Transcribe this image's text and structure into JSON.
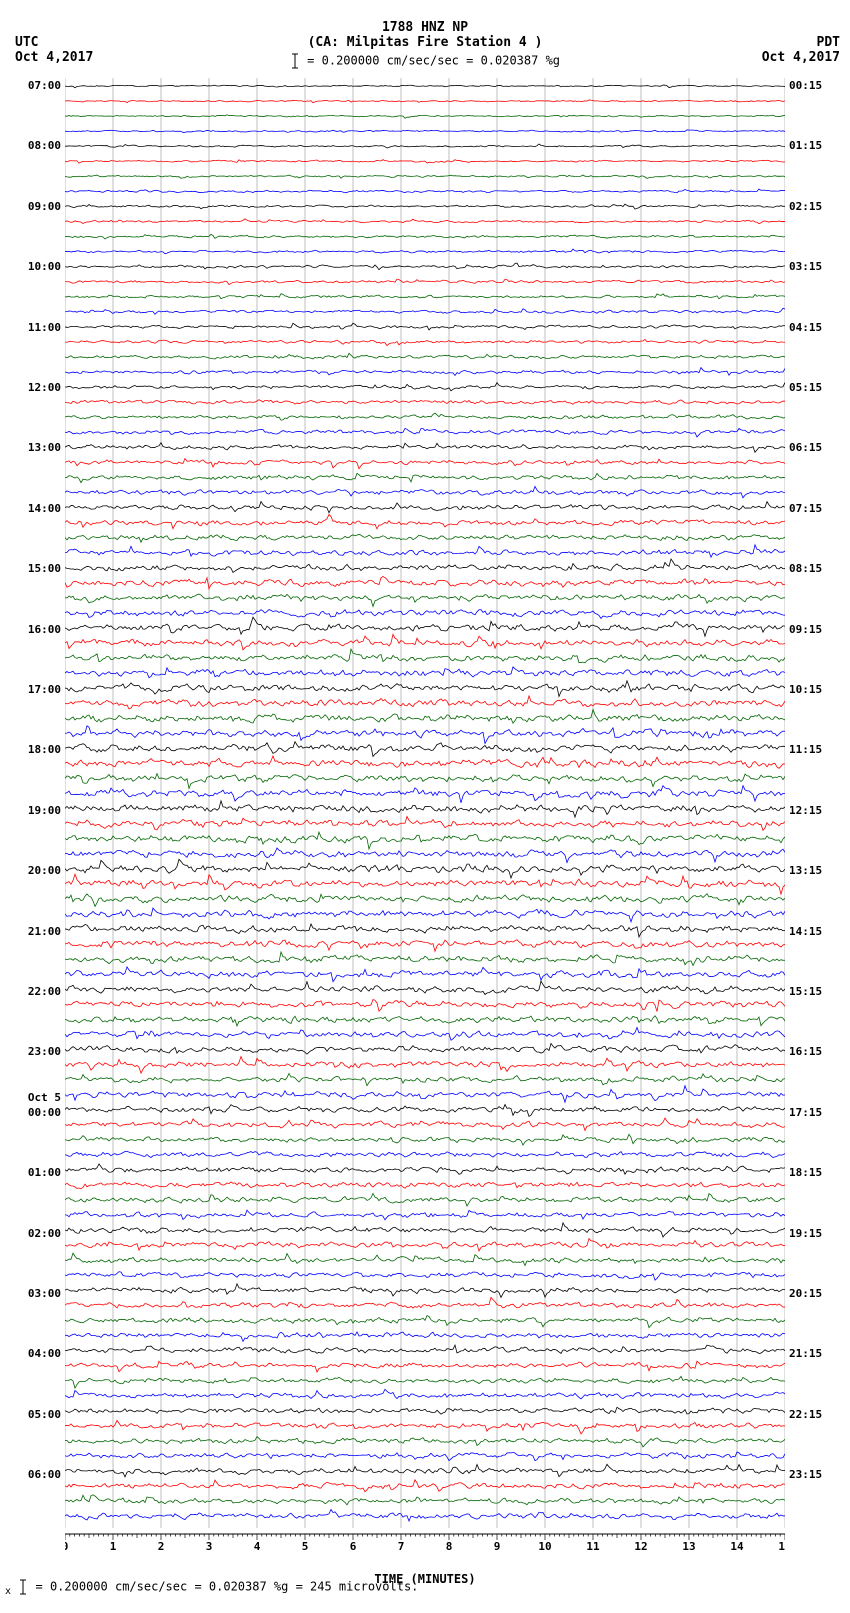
{
  "header": {
    "station_code": "1788 HNZ NP",
    "station_name": "(CA: Milpitas Fire Station 4 )",
    "scale_text": "= 0.200000 cm/sec/sec = 0.020387 %g",
    "left_tz": "UTC",
    "left_date": "Oct 4,2017",
    "right_tz": "PDT",
    "right_date": "Oct 4,2017"
  },
  "plot": {
    "colors": [
      "#000000",
      "#ff0000",
      "#006600",
      "#0000ff"
    ],
    "background": "#ffffff",
    "grid_color": "#808080",
    "n_rows": 96,
    "row_height": 15.1,
    "utc_labels": [
      {
        "row": 0,
        "text": "07:00"
      },
      {
        "row": 4,
        "text": "08:00"
      },
      {
        "row": 8,
        "text": "09:00"
      },
      {
        "row": 12,
        "text": "10:00"
      },
      {
        "row": 16,
        "text": "11:00"
      },
      {
        "row": 20,
        "text": "12:00"
      },
      {
        "row": 24,
        "text": "13:00"
      },
      {
        "row": 28,
        "text": "14:00"
      },
      {
        "row": 32,
        "text": "15:00"
      },
      {
        "row": 36,
        "text": "16:00"
      },
      {
        "row": 40,
        "text": "17:00"
      },
      {
        "row": 44,
        "text": "18:00"
      },
      {
        "row": 48,
        "text": "19:00"
      },
      {
        "row": 52,
        "text": "20:00"
      },
      {
        "row": 56,
        "text": "21:00"
      },
      {
        "row": 60,
        "text": "22:00"
      },
      {
        "row": 64,
        "text": "23:00"
      },
      {
        "row": 67,
        "text": "Oct 5"
      },
      {
        "row": 68,
        "text": "00:00"
      },
      {
        "row": 72,
        "text": "01:00"
      },
      {
        "row": 76,
        "text": "02:00"
      },
      {
        "row": 80,
        "text": "03:00"
      },
      {
        "row": 84,
        "text": "04:00"
      },
      {
        "row": 88,
        "text": "05:00"
      },
      {
        "row": 92,
        "text": "06:00"
      }
    ],
    "pdt_labels": [
      {
        "row": 0,
        "text": "00:15"
      },
      {
        "row": 4,
        "text": "01:15"
      },
      {
        "row": 8,
        "text": "02:15"
      },
      {
        "row": 12,
        "text": "03:15"
      },
      {
        "row": 16,
        "text": "04:15"
      },
      {
        "row": 20,
        "text": "05:15"
      },
      {
        "row": 24,
        "text": "06:15"
      },
      {
        "row": 28,
        "text": "07:15"
      },
      {
        "row": 32,
        "text": "08:15"
      },
      {
        "row": 36,
        "text": "09:15"
      },
      {
        "row": 40,
        "text": "10:15"
      },
      {
        "row": 44,
        "text": "11:15"
      },
      {
        "row": 48,
        "text": "12:15"
      },
      {
        "row": 52,
        "text": "13:15"
      },
      {
        "row": 56,
        "text": "14:15"
      },
      {
        "row": 60,
        "text": "15:15"
      },
      {
        "row": 64,
        "text": "16:15"
      },
      {
        "row": 68,
        "text": "17:15"
      },
      {
        "row": 72,
        "text": "18:15"
      },
      {
        "row": 76,
        "text": "19:15"
      },
      {
        "row": 80,
        "text": "20:15"
      },
      {
        "row": 84,
        "text": "21:15"
      },
      {
        "row": 88,
        "text": "22:15"
      },
      {
        "row": 92,
        "text": "23:15"
      }
    ],
    "amplitude_profile": [
      2.0,
      2.2,
      2.4,
      2.5,
      2.6,
      2.8,
      3.0,
      3.2,
      3.3,
      3.4,
      3.5,
      3.6,
      3.8,
      4.0,
      4.2,
      4.4,
      4.6,
      4.8,
      5.0,
      5.2,
      5.4,
      5.6,
      5.8,
      6.0,
      6.3,
      6.6,
      6.9,
      7.2,
      7.5,
      7.8,
      8.1,
      8.4,
      8.7,
      9.0,
      9.2,
      9.4,
      9.6,
      9.8,
      10.0,
      10.2,
      10.4,
      10.6,
      10.8,
      11.0,
      11.0,
      11.0,
      11.0,
      11.0,
      11.0,
      11.0,
      11.0,
      11.0,
      11.0,
      11.0,
      11.0,
      10.8,
      10.6,
      10.4,
      10.2,
      10.0,
      9.8,
      9.6,
      9.4,
      9.2,
      9.0,
      8.8,
      8.6,
      8.4,
      8.2,
      8.0,
      8.0,
      8.0,
      8.0,
      8.0,
      8.0,
      8.0,
      8.0,
      8.0,
      8.0,
      8.0,
      8.0,
      8.0,
      8.0,
      8.0,
      8.0,
      8.0,
      8.0,
      8.0,
      8.0,
      8.0,
      8.0,
      8.0,
      8.0,
      8.0,
      8.0,
      8.0
    ],
    "xaxis": {
      "min": 0,
      "max": 15,
      "step": 1,
      "label": "TIME (MINUTES)"
    }
  },
  "footer": {
    "text": "= 0.200000 cm/sec/sec = 0.020387 %g =   245 microvolts."
  }
}
